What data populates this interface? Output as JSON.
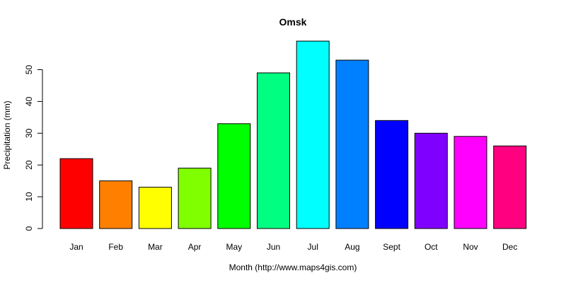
{
  "chart_data": {
    "type": "bar",
    "title": "Omsk",
    "xlabel": "Month (http://www.maps4gis.com)",
    "ylabel": "Precipitation (mm)",
    "categories": [
      "Jan",
      "Feb",
      "Mar",
      "Apr",
      "May",
      "Jun",
      "Jul",
      "Aug",
      "Sept",
      "Oct",
      "Nov",
      "Dec"
    ],
    "values": [
      22,
      15,
      13,
      19,
      33,
      49,
      59,
      53,
      34,
      30,
      29,
      26
    ],
    "ylim": [
      0,
      60
    ],
    "yticks": [
      0,
      10,
      20,
      30,
      40,
      50
    ],
    "colors": [
      "#FF0000",
      "#FF8000",
      "#FFFF00",
      "#80FF00",
      "#00FF00",
      "#00FF80",
      "#00FFFF",
      "#0080FF",
      "#0000FF",
      "#8000FF",
      "#FF00FF",
      "#FF0080"
    ],
    "grid": false,
    "legend": "none"
  }
}
